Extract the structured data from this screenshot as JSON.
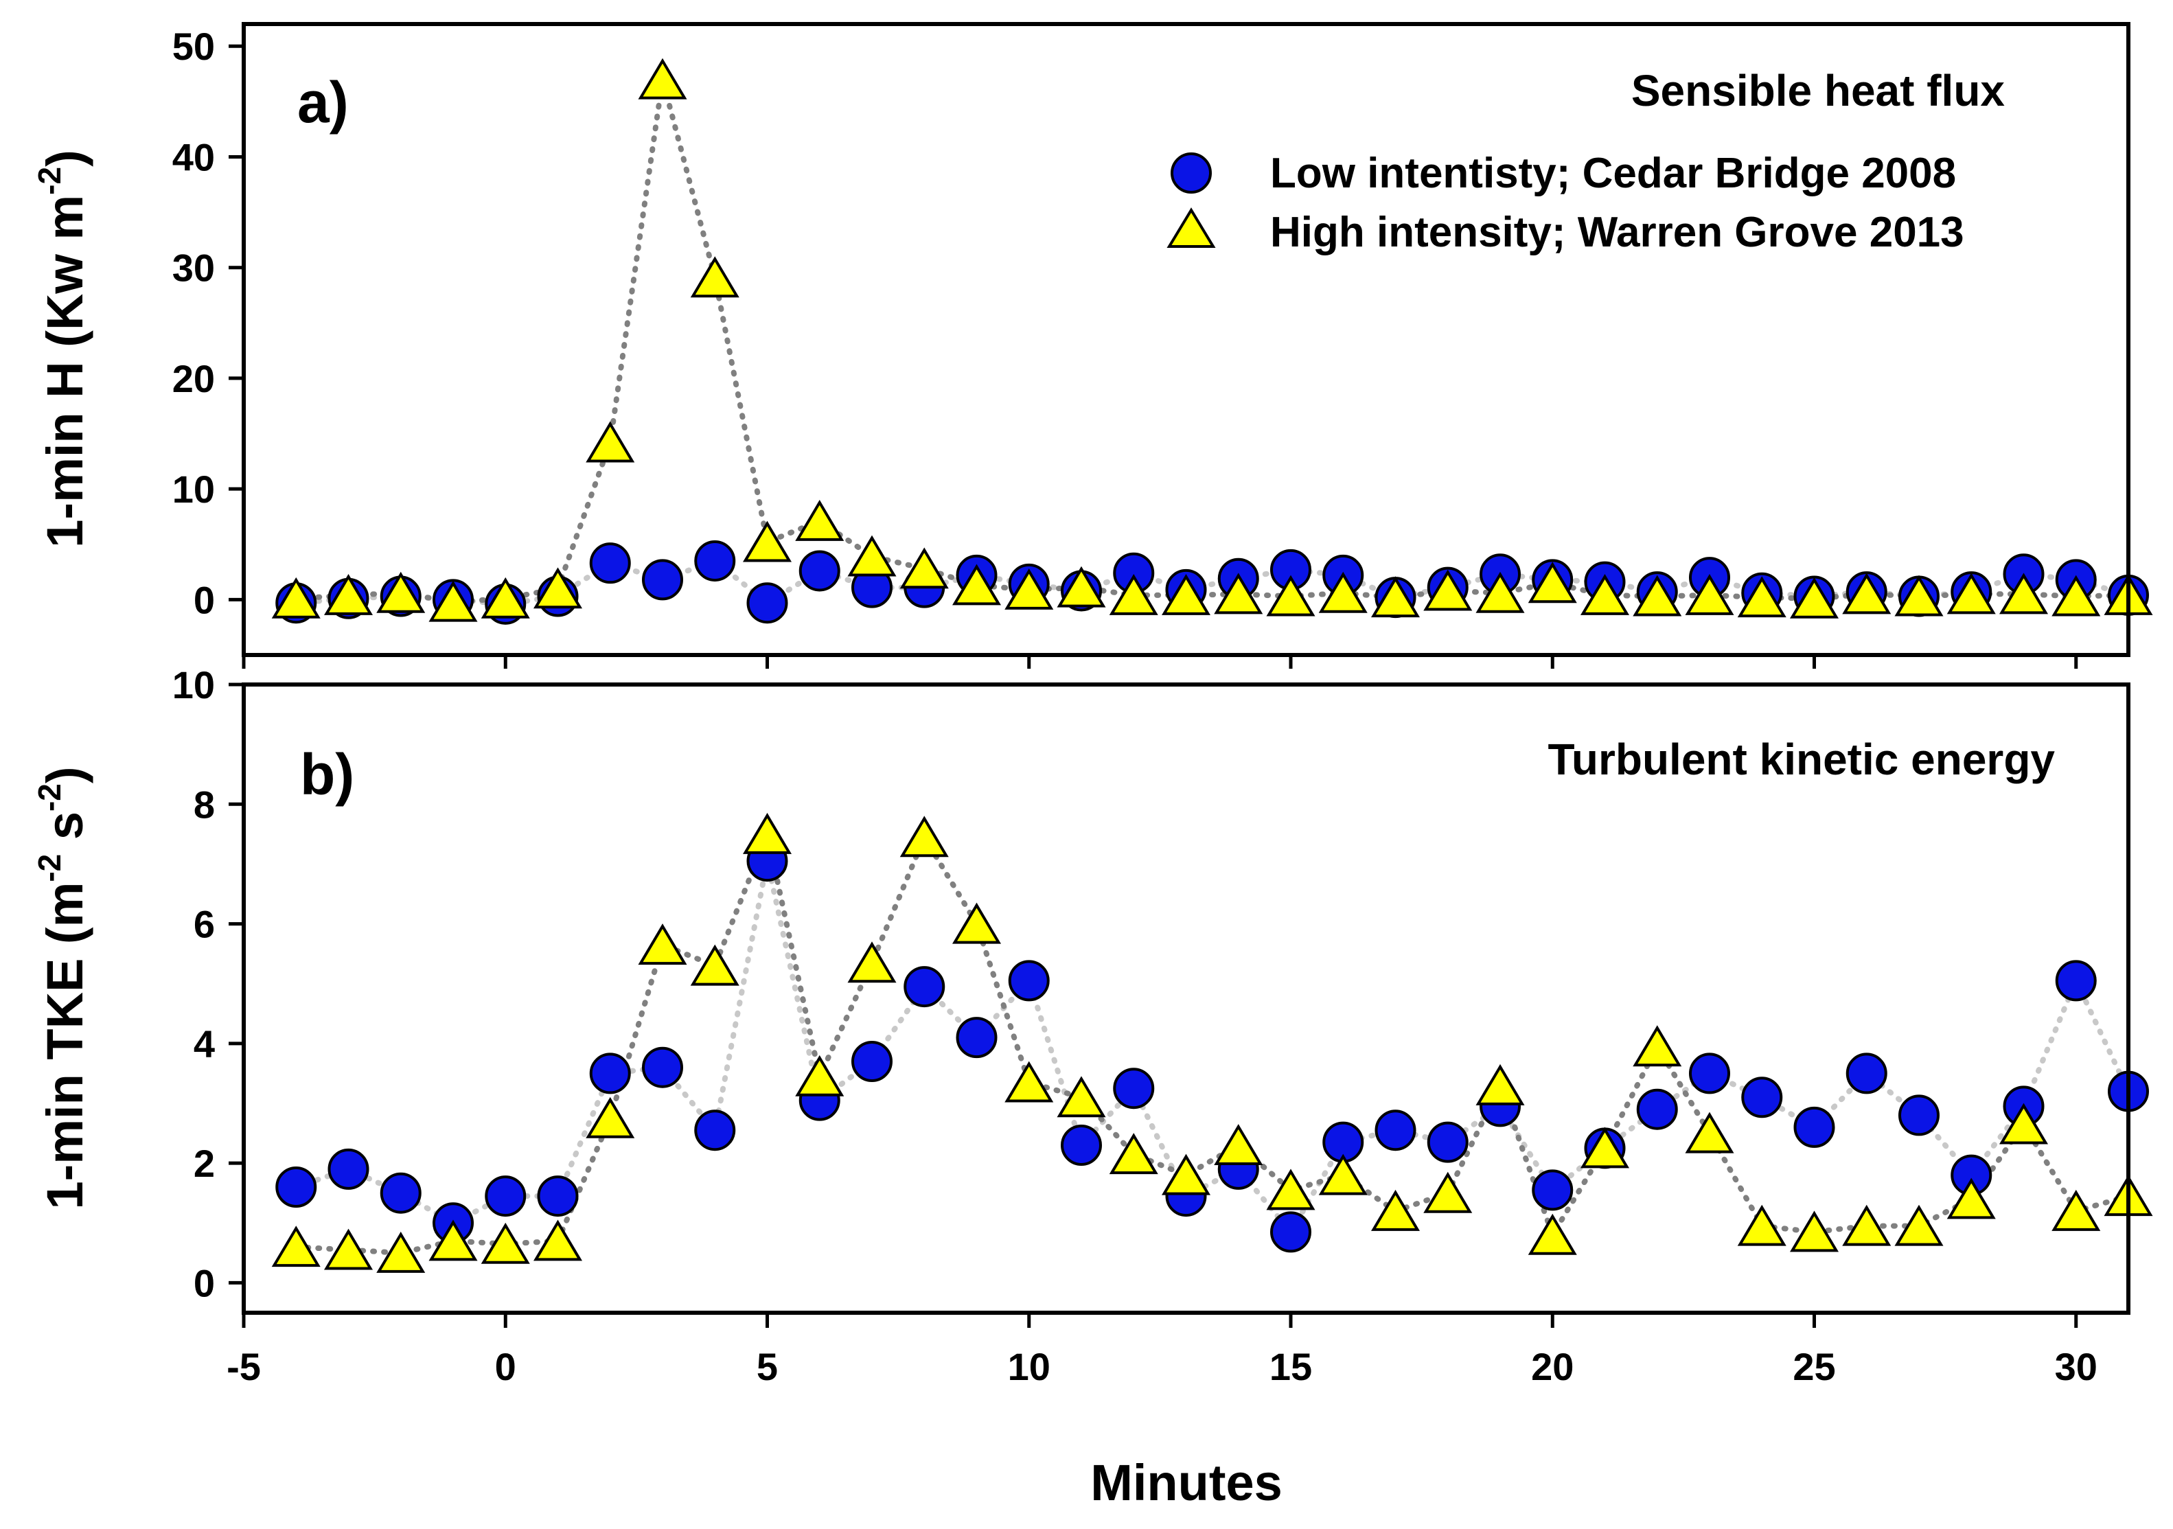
{
  "chart_data": [
    {
      "type": "line",
      "panel_label": "a)",
      "title": "Sensible heat flux",
      "xlabel": "Minutes",
      "ylabel": "1-min H (Kw m",
      "ylabel_sup": "-2",
      "ylabel_end": ")",
      "xlim": [
        -5,
        31
      ],
      "ylim": [
        -5,
        52
      ],
      "yticks": [
        0,
        10,
        20,
        30,
        40,
        50
      ],
      "x": [
        -4,
        -3,
        -2,
        -1,
        0,
        1,
        2,
        3,
        4,
        5,
        6,
        7,
        8,
        9,
        10,
        11,
        12,
        13,
        14,
        15,
        16,
        17,
        18,
        19,
        20,
        21,
        22,
        23,
        24,
        25,
        26,
        27,
        28,
        29,
        30,
        31
      ],
      "series": [
        {
          "name": "Low intentisty; Cedar Bridge 2008",
          "marker": "circle",
          "color": "#0A14E6",
          "line_color": "#C8C8C8",
          "values": [
            -0.3,
            0.1,
            0.3,
            0.0,
            -0.4,
            0.3,
            3.3,
            1.8,
            3.5,
            -0.3,
            2.6,
            1.1,
            1.1,
            2.2,
            1.4,
            0.8,
            2.4,
            0.9,
            1.9,
            2.7,
            2.2,
            0.2,
            1.1,
            2.3,
            1.8,
            1.6,
            0.7,
            2.0,
            0.6,
            0.3,
            0.7,
            0.3,
            0.7,
            2.3,
            1.8,
            0.4
          ]
        },
        {
          "name": "High intensity; Warren Grove 2013",
          "marker": "triangle",
          "color": "#FFFF00",
          "line_color": "#808080",
          "values": [
            0.1,
            0.4,
            0.6,
            -0.2,
            0.1,
            1.0,
            14.2,
            47.0,
            29.1,
            5.2,
            7.1,
            3.9,
            2.8,
            1.3,
            0.9,
            1.1,
            0.4,
            0.4,
            0.5,
            0.3,
            0.6,
            0.2,
            0.8,
            0.6,
            1.5,
            0.4,
            0.3,
            0.4,
            0.2,
            0.1,
            0.5,
            0.3,
            0.5,
            0.5,
            0.3,
            0.4
          ]
        }
      ]
    },
    {
      "type": "line",
      "panel_label": "b)",
      "title": "Turbulent kinetic energy",
      "xlabel": "Minutes",
      "ylabel": "1-min TKE (m",
      "ylabel_sup1": "-2",
      "ylabel_mid": " s",
      "ylabel_sup2": "-2",
      "ylabel_end": ")",
      "xlim": [
        -5,
        31
      ],
      "ylim": [
        -0.5,
        10
      ],
      "yticks": [
        0,
        2,
        4,
        6,
        8,
        10
      ],
      "xticks": [
        -5,
        0,
        5,
        10,
        15,
        20,
        25,
        30
      ],
      "x": [
        -4,
        -3,
        -2,
        -1,
        0,
        1,
        2,
        3,
        4,
        5,
        6,
        7,
        8,
        9,
        10,
        11,
        12,
        13,
        14,
        15,
        16,
        17,
        18,
        19,
        20,
        21,
        22,
        23,
        24,
        25,
        26,
        27,
        28,
        29,
        30,
        31
      ],
      "series": [
        {
          "name": "Low intentisty; Cedar Bridge 2008",
          "marker": "circle",
          "color": "#0A14E6",
          "line_color": "#C8C8C8",
          "values": [
            1.6,
            1.9,
            1.5,
            1.0,
            1.45,
            1.45,
            3.5,
            3.6,
            2.55,
            7.05,
            3.05,
            3.7,
            4.95,
            4.1,
            5.05,
            2.3,
            3.25,
            1.45,
            1.9,
            0.85,
            2.35,
            2.55,
            2.35,
            2.95,
            1.55,
            2.25,
            2.9,
            3.5,
            3.1,
            2.6,
            3.5,
            2.8,
            1.8,
            2.95,
            5.05,
            3.2
          ]
        },
        {
          "name": "High intensity; Warren Grove 2013",
          "marker": "triangle",
          "color": "#FFFF00",
          "line_color": "#808080",
          "values": [
            0.6,
            0.55,
            0.5,
            0.7,
            0.65,
            0.7,
            2.75,
            5.65,
            5.3,
            7.5,
            3.45,
            5.35,
            7.45,
            6.0,
            3.35,
            3.1,
            2.15,
            1.8,
            2.3,
            1.55,
            1.8,
            1.2,
            1.5,
            3.3,
            0.8,
            2.25,
            3.95,
            2.5,
            0.95,
            0.85,
            0.95,
            0.95,
            1.4,
            2.65,
            1.2,
            1.45
          ]
        }
      ]
    }
  ]
}
